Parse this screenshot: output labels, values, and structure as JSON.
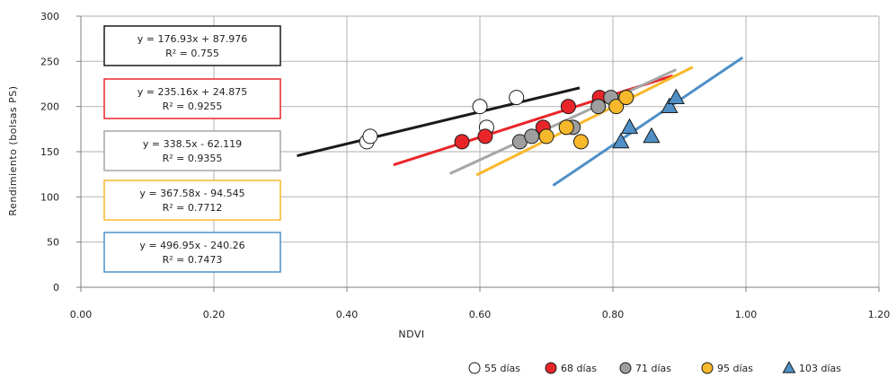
{
  "chart_data": {
    "type": "scatter",
    "xlabel": "NDVI",
    "ylabel": "Rendimiento (bolsas PS)",
    "xlim": [
      0,
      1.2
    ],
    "ylim": [
      0,
      300
    ],
    "x_ticks": [
      "0.00",
      "0.20",
      "0.40",
      "0.60",
      "0.80",
      "1.00",
      "1.20"
    ],
    "y_ticks": [
      "0",
      "50",
      "100",
      "150",
      "200",
      "250",
      "300"
    ],
    "grid": true,
    "legend_position": "bottom-right",
    "series": [
      {
        "name": "55 días",
        "marker": "circle",
        "color": "#ffffff",
        "line_color": "#1a1a1a",
        "points": [
          [
            0.43,
            161
          ],
          [
            0.435,
            167
          ],
          [
            0.6,
            200
          ],
          [
            0.61,
            177
          ],
          [
            0.655,
            210
          ]
        ],
        "fit": {
          "slope": 176.93,
          "intercept": 87.976,
          "x_range": [
            0.325,
            0.75
          ]
        },
        "equation": "y = 176.93x + 87.976",
        "r2": "R² = 0.755"
      },
      {
        "name": "68 días",
        "marker": "circle",
        "color": "#e8262a",
        "line_color": "#e8262a",
        "points": [
          [
            0.573,
            161
          ],
          [
            0.608,
            167
          ],
          [
            0.695,
            177
          ],
          [
            0.733,
            200
          ],
          [
            0.78,
            210
          ]
        ],
        "fit": {
          "slope": 235.16,
          "intercept": 24.875,
          "x_range": [
            0.47,
            0.89
          ]
        },
        "equation": "y = 235.16x + 24.875",
        "r2": "R² = 0.9255"
      },
      {
        "name": "71 días",
        "marker": "circle",
        "color": "#9e9e9e",
        "line_color": "#a6a6a6",
        "points": [
          [
            0.66,
            161
          ],
          [
            0.678,
            167
          ],
          [
            0.74,
            177
          ],
          [
            0.778,
            200
          ],
          [
            0.797,
            210
          ]
        ],
        "fit": {
          "slope": 338.5,
          "intercept": -62.119,
          "x_range": [
            0.555,
            0.895
          ]
        },
        "equation": "y = 338.5x - 62.119",
        "r2": "R² = 0.9355"
      },
      {
        "name": "95 días",
        "marker": "circle",
        "color": "#f7b92b",
        "line_color": "#f7b92b",
        "points": [
          [
            0.7,
            167
          ],
          [
            0.73,
            177
          ],
          [
            0.752,
            161
          ],
          [
            0.805,
            200
          ],
          [
            0.82,
            210
          ]
        ],
        "fit": {
          "slope": 367.58,
          "intercept": -94.545,
          "x_range": [
            0.595,
            0.92
          ]
        },
        "equation": "y = 367.58x - 94.545",
        "r2": "R² = 0.7712"
      },
      {
        "name": "103 días",
        "marker": "triangle",
        "color": "#4f8fc6",
        "line_color": "#4f8fc6",
        "points": [
          [
            0.812,
            161
          ],
          [
            0.825,
            177
          ],
          [
            0.858,
            167
          ],
          [
            0.885,
            200
          ],
          [
            0.895,
            210
          ]
        ],
        "fit": {
          "slope": 496.95,
          "intercept": -240.26,
          "x_range": [
            0.71,
            0.995
          ]
        },
        "equation": "y = 496.95x - 240.26",
        "r2": "R² = 0.7473"
      }
    ]
  }
}
